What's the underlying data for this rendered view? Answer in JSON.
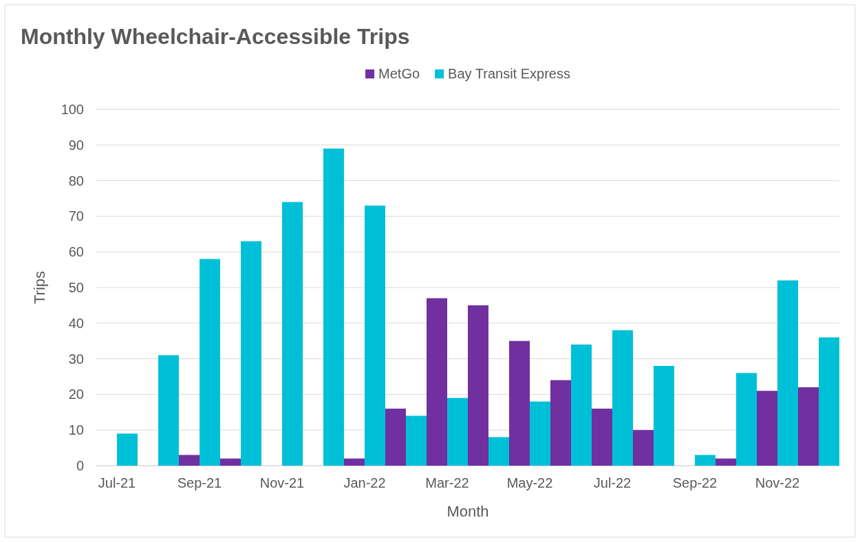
{
  "chart_data": {
    "type": "bar",
    "title": "Monthly Wheelchair-Accessible Trips",
    "xlabel": "Month",
    "ylabel": "Trips",
    "categories": [
      "Jul-21",
      null,
      "Sep-21",
      null,
      "Nov-21",
      null,
      "Jan-22",
      null,
      "Mar-22",
      null,
      "May-22",
      null,
      "Jul-22",
      null,
      "Sep-22",
      null,
      "Nov-22",
      null
    ],
    "series": [
      {
        "name": "MetGo",
        "color": "#7030a0",
        "values": [
          0,
          0,
          3,
          2,
          0,
          0,
          2,
          16,
          47,
          45,
          35,
          24,
          16,
          10,
          0,
          2,
          21,
          22
        ]
      },
      {
        "name": "Bay Transit Express",
        "color": "#00c0d8",
        "values": [
          9,
          31,
          58,
          63,
          74,
          89,
          73,
          14,
          19,
          8,
          18,
          34,
          38,
          28,
          3,
          26,
          52,
          36
        ]
      }
    ],
    "ylim": [
      0,
      100
    ],
    "yticks": [
      0,
      10,
      20,
      30,
      40,
      50,
      60,
      70,
      80,
      90,
      100
    ],
    "grid": "y",
    "legend": "top"
  }
}
